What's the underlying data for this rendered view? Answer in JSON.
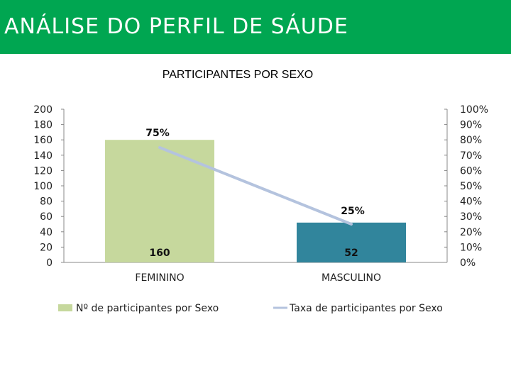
{
  "header": {
    "title": "ANÁLISE DO PERFIL DE SÁUDE"
  },
  "colors": {
    "header_bg": "#00a651",
    "bar_feminino": "#c6d89d",
    "bar_masculino": "#31859c",
    "line": "#b4c3de"
  },
  "chart_data": {
    "type": "bar",
    "title": "PARTICIPANTES POR SEXO",
    "categories": [
      "FEMININO",
      "MASCULINO"
    ],
    "ylim": [
      0,
      200
    ],
    "y2lim": [
      0,
      100
    ],
    "y_ticks": [
      "0",
      "20",
      "40",
      "60",
      "80",
      "100",
      "120",
      "140",
      "160",
      "180",
      "200"
    ],
    "y2_ticks": [
      "0%",
      "10%",
      "20%",
      "30%",
      "40%",
      "50%",
      "60%",
      "70%",
      "80%",
      "90%",
      "100%"
    ],
    "grid": false,
    "legend_position": "bottom",
    "series": [
      {
        "name": "Nº de participantes por Sexo",
        "type": "bar",
        "axis": "left",
        "values": [
          160,
          52
        ],
        "labels": [
          "160",
          "52"
        ]
      },
      {
        "name": "Taxa de participantes por Sexo",
        "type": "line",
        "axis": "right",
        "values": [
          75,
          25
        ],
        "labels": [
          "75%",
          "25%"
        ]
      }
    ]
  }
}
